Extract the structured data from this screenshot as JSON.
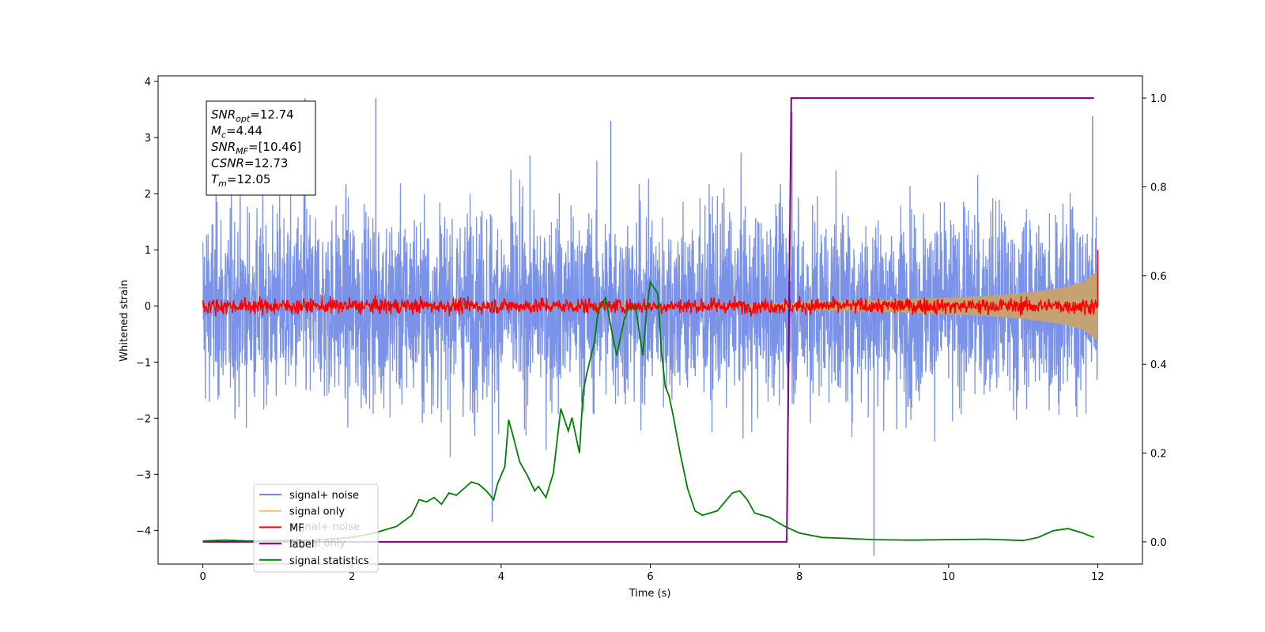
{
  "chart_data": {
    "type": "line",
    "xlabel": "Time (s)",
    "ylabel": "Whitened strain",
    "xlim": [
      -0.6,
      12.6
    ],
    "ylim_left": [
      -4.6,
      4.1
    ],
    "ylim_right": [
      -0.05,
      1.05
    ],
    "xticks": [
      0,
      2,
      4,
      6,
      8,
      10,
      12
    ],
    "yticks_left": [
      -4,
      -3,
      -2,
      -1,
      0,
      1,
      2,
      3,
      4
    ],
    "yticks_right": [
      "0.0",
      "0.2",
      "0.4",
      "0.6",
      "0.8",
      "1.0"
    ],
    "legend_position": "lower-left",
    "legend": [
      {
        "label": "signal+ noise",
        "color": "#6b86e6"
      },
      {
        "label": "signal only",
        "color": "#ffbf60"
      },
      {
        "label": "MF",
        "color": "#ff0000"
      },
      {
        "label": "label",
        "color": "#800080"
      },
      {
        "label": "signal statistics",
        "color": "#008000"
      }
    ],
    "ghost_legend": [
      "signal+ noise",
      "signal only"
    ],
    "info_box": {
      "snr_opt": {
        "symbol": "SNR",
        "sub": "opt",
        "value": "=12.74"
      },
      "mc": {
        "symbol": "M",
        "sub": "c",
        "value": "=4.44"
      },
      "snr_mf": {
        "symbol": "SNR",
        "sub": "MF",
        "value": "=[10.46]"
      },
      "csnr": {
        "symbol": "CSNR",
        "sub": "",
        "value": "=12.73"
      },
      "tm": {
        "symbol": "T",
        "sub": "m",
        "value": "=12.05"
      }
    },
    "series": [
      {
        "name": "signal+ noise",
        "axis": "left",
        "color": "#6b86e6",
        "x_range": [
          0,
          12
        ],
        "envelope": {
          "typical_min": -1.6,
          "typical_max": 1.6,
          "peak_min": -4.45,
          "peak_max": 3.7
        },
        "notable_spikes": [
          [
            1.37,
            3.7
          ],
          [
            2.32,
            3.7
          ],
          [
            9.0,
            -4.45
          ],
          [
            3.88,
            -3.85
          ],
          [
            5.47,
            3.3
          ],
          [
            7.9,
            3.45
          ],
          [
            11.93,
            3.38
          ]
        ]
      },
      {
        "name": "signal only",
        "axis": "left",
        "color": "#c4a274",
        "x": [
          7.0,
          8.0,
          9.0,
          10.0,
          10.5,
          11.0,
          11.5,
          11.8,
          12.0
        ],
        "amplitude": [
          0.02,
          0.07,
          0.1,
          0.15,
          0.18,
          0.23,
          0.32,
          0.42,
          0.62
        ]
      },
      {
        "name": "MF",
        "axis": "left",
        "color": "#ff0000",
        "x_range": [
          0,
          12
        ],
        "envelope": {
          "typical_min": -0.15,
          "typical_max": 0.15
        },
        "end_spike": [
          12.0,
          1.0
        ]
      },
      {
        "name": "label",
        "axis": "right",
        "color": "#800080",
        "x": [
          0,
          7.83,
          7.89,
          11.95
        ],
        "y": [
          0,
          0,
          1,
          1
        ]
      },
      {
        "name": "signal statistics",
        "axis": "right",
        "color": "#008000",
        "x": [
          0,
          0.3,
          0.6,
          1.0,
          1.5,
          2.0,
          2.3,
          2.6,
          2.8,
          2.9,
          3.0,
          3.1,
          3.2,
          3.3,
          3.4,
          3.5,
          3.6,
          3.7,
          3.8,
          3.9,
          3.95,
          4.05,
          4.1,
          4.15,
          4.25,
          4.35,
          4.45,
          4.5,
          4.6,
          4.7,
          4.8,
          4.9,
          4.95,
          5.05,
          5.1,
          5.15,
          5.25,
          5.3,
          5.4,
          5.5,
          5.55,
          5.6,
          5.65,
          5.7,
          5.8,
          5.9,
          5.95,
          6.0,
          6.1,
          6.15,
          6.2,
          6.25,
          6.3,
          6.4,
          6.5,
          6.6,
          6.7,
          6.8,
          6.9,
          7.0,
          7.1,
          7.2,
          7.3,
          7.4,
          7.5,
          7.6,
          7.7,
          7.8,
          8.0,
          8.3,
          8.6,
          9.0,
          9.5,
          10.0,
          10.5,
          11.0,
          11.2,
          11.4,
          11.6,
          11.8,
          11.95
        ],
        "y": [
          0.002,
          0.004,
          0.002,
          0.003,
          0.004,
          0.01,
          0.02,
          0.035,
          0.06,
          0.095,
          0.09,
          0.1,
          0.085,
          0.11,
          0.105,
          0.12,
          0.135,
          0.13,
          0.115,
          0.095,
          0.13,
          0.17,
          0.275,
          0.245,
          0.18,
          0.15,
          0.115,
          0.125,
          0.1,
          0.155,
          0.3,
          0.25,
          0.28,
          0.2,
          0.34,
          0.38,
          0.45,
          0.52,
          0.55,
          0.46,
          0.42,
          0.46,
          0.5,
          0.525,
          0.53,
          0.42,
          0.52,
          0.585,
          0.56,
          0.43,
          0.35,
          0.33,
          0.29,
          0.2,
          0.12,
          0.07,
          0.06,
          0.065,
          0.07,
          0.09,
          0.11,
          0.115,
          0.095,
          0.065,
          0.06,
          0.055,
          0.045,
          0.035,
          0.02,
          0.01,
          0.008,
          0.005,
          0.004,
          0.005,
          0.006,
          0.003,
          0.01,
          0.025,
          0.03,
          0.02,
          0.01
        ]
      }
    ]
  }
}
